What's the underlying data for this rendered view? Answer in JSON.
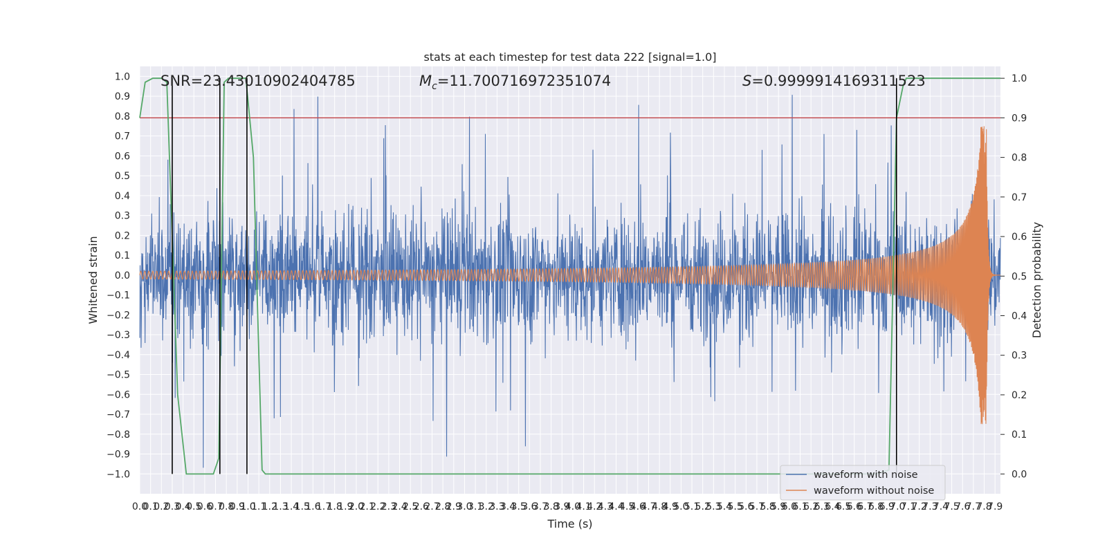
{
  "chart_data": {
    "type": "line",
    "title": "stats at each timestep for test data 222 [signal=1.0]",
    "xlabel": "Time (s)",
    "ylabel_left": "Whitened strain",
    "ylabel_right": "Detection probability",
    "xlim": [
      0.0,
      7.95
    ],
    "ylim_left": [
      -1.1,
      1.05
    ],
    "ylim_right": [
      -0.05,
      1.03
    ],
    "x_ticks": [
      "0.0",
      "0.1",
      "0.2",
      "0.3",
      "0.4",
      "0.5",
      "0.6",
      "0.7",
      "0.8",
      "0.9",
      "1.0",
      "1.1",
      "1.2",
      "1.3",
      "1.4",
      "1.5",
      "1.6",
      "1.7",
      "1.8",
      "1.9",
      "2.0",
      "2.1",
      "2.2",
      "2.3",
      "2.4",
      "2.5",
      "2.6",
      "2.7",
      "2.8",
      "2.9",
      "3.0",
      "3.1",
      "3.2",
      "3.3",
      "3.4",
      "3.5",
      "3.6",
      "3.7",
      "3.8",
      "3.9",
      "4.0",
      "4.1",
      "4.2",
      "4.3",
      "4.4",
      "4.5",
      "4.6",
      "4.7",
      "4.8",
      "4.9",
      "5.0",
      "5.1",
      "5.2",
      "5.3",
      "5.4",
      "5.5",
      "5.6",
      "5.7",
      "5.8",
      "5.9",
      "6.0",
      "6.1",
      "6.2",
      "6.3",
      "6.4",
      "6.5",
      "6.6",
      "6.7",
      "6.8",
      "6.9",
      "7.0",
      "7.1",
      "7.2",
      "7.3",
      "7.4",
      "7.5",
      "7.6",
      "7.7",
      "7.8",
      "7.9"
    ],
    "y_ticks_left": [
      "-1.0",
      "-0.9",
      "-0.8",
      "-0.7",
      "-0.6",
      "-0.5",
      "-0.4",
      "-0.3",
      "-0.2",
      "-0.1",
      "0.0",
      "0.1",
      "0.2",
      "0.3",
      "0.4",
      "0.5",
      "0.6",
      "0.7",
      "0.8",
      "0.9",
      "1.0"
    ],
    "y_ticks_right": [
      "0.0",
      "0.1",
      "0.2",
      "0.3",
      "0.4",
      "0.5",
      "0.6",
      "0.7",
      "0.8",
      "0.9",
      "1.0"
    ],
    "annotations": {
      "snr": "SNR=23.43010902404785",
      "mc_symbol": "M",
      "mc_sub": "c",
      "mc_value": "=11.700716972351074",
      "s_symbol": "S",
      "s_value": "=0.9999914169311523"
    },
    "legend": {
      "position": "lower right",
      "entries": [
        "waveform with noise",
        "waveform without noise"
      ]
    },
    "series": [
      {
        "name": "waveform with noise",
        "color": "#4c72b0",
        "axis": "left",
        "description_values": "noisy whitened strain, roughly within [-1.0, 1.0]"
      },
      {
        "name": "waveform without noise",
        "color": "#dd8452",
        "axis": "left",
        "chirp": {
          "start_amplitude": 0.02,
          "peak_amplitude": 0.75,
          "merger_time": 7.82
        }
      },
      {
        "color": "#55a868",
        "axis": "right",
        "x": [
          0.0,
          0.05,
          0.12,
          0.2,
          0.25,
          0.3,
          0.35,
          0.43,
          0.5,
          0.6,
          0.68,
          0.73,
          0.78,
          0.82,
          0.9,
          0.98,
          1.05,
          1.1,
          1.13,
          1.16,
          1.2,
          1.3,
          6.0,
          6.8,
          6.92,
          6.99,
          7.05,
          7.08,
          7.12,
          7.2,
          7.95
        ],
        "y": [
          0.9,
          0.99,
          1.0,
          1.0,
          0.99,
          0.6,
          0.2,
          0.0,
          0.0,
          0.0,
          0.0,
          0.04,
          0.99,
          1.0,
          1.0,
          1.0,
          0.8,
          0.3,
          0.01,
          0.0,
          0.0,
          0.0,
          0.0,
          0.0,
          0.01,
          0.9,
          0.98,
          1.0,
          1.0,
          1.0,
          1.0
        ]
      }
    ],
    "threshold_line": {
      "value": 0.9,
      "axis": "right",
      "color": "#c44e52"
    },
    "vertical_markers": {
      "x": [
        0.3,
        0.74,
        0.99,
        6.99
      ],
      "color": "#000000"
    },
    "grid": true,
    "background": "#eaeaf2"
  }
}
